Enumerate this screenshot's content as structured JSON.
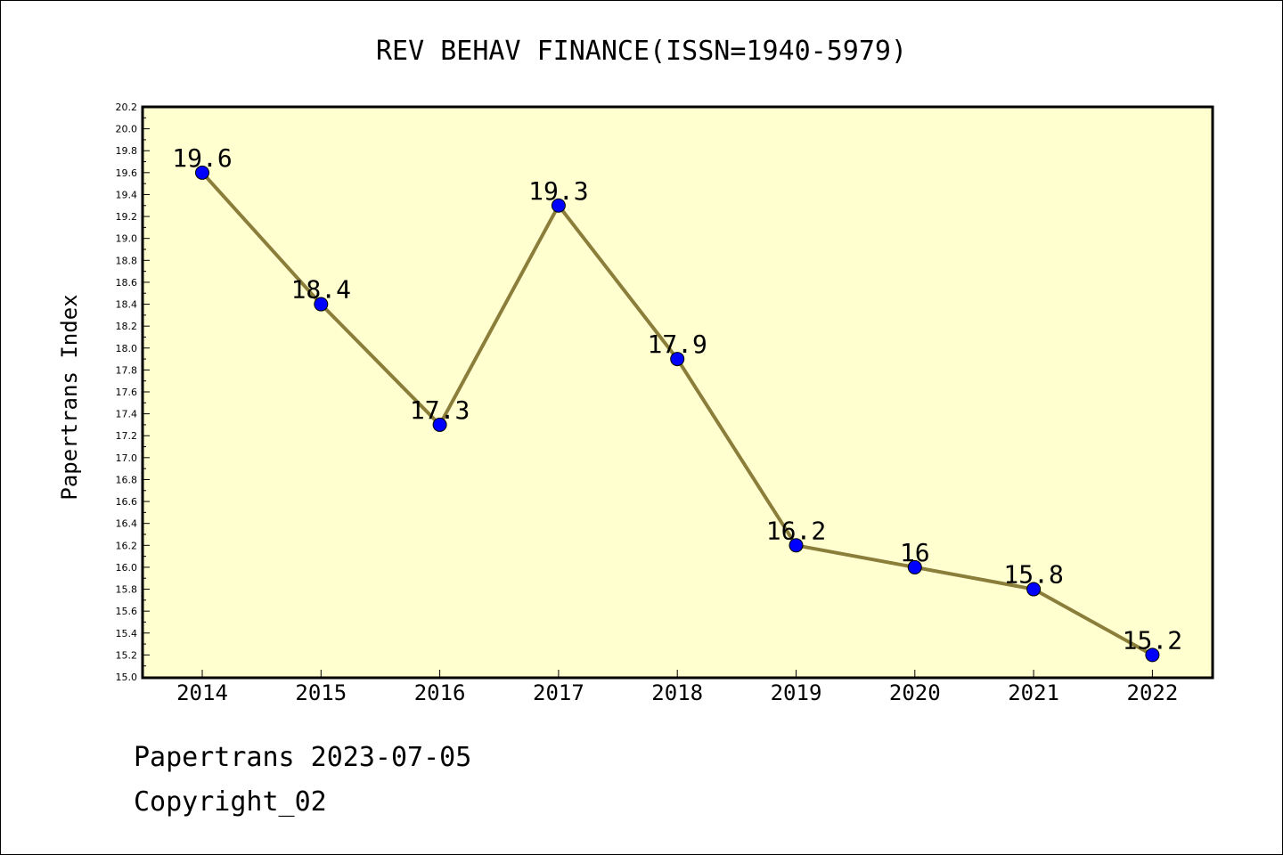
{
  "chart_data": {
    "type": "line",
    "title": "REV BEHAV FINANCE(ISSN=1940-5979)",
    "xlabel": "",
    "ylabel": "Papertrans Index",
    "categories": [
      "2014",
      "2015",
      "2016",
      "2017",
      "2018",
      "2019",
      "2020",
      "2021",
      "2022"
    ],
    "series": [
      {
        "values": [
          19.6,
          18.4,
          17.3,
          19.3,
          17.9,
          16.2,
          16.0,
          15.8,
          15.2
        ],
        "data_labels": [
          "19.6",
          "18.4",
          "17.3",
          "19.3",
          "17.9",
          "16.2",
          "16",
          "15.8",
          "15.2"
        ]
      }
    ],
    "ylim": [
      15.0,
      20.2
    ],
    "yticks": [
      "15.0",
      "15.2",
      "15.4",
      "15.6",
      "15.8",
      "16.0",
      "16.2",
      "16.4",
      "16.6",
      "16.8",
      "17.0",
      "17.2",
      "17.4",
      "17.6",
      "17.8",
      "18.0",
      "18.2",
      "18.4",
      "18.6",
      "18.8",
      "19.0",
      "19.2",
      "19.4",
      "19.6",
      "19.8",
      "20.0",
      "20.2"
    ],
    "grid": false,
    "colors": {
      "plot_background": "#ffffd0",
      "line": "#8b7d3a",
      "marker": "#0000ff"
    }
  },
  "footer": {
    "line1": "Papertrans 2023-07-05",
    "line2": "Copyright_02"
  }
}
